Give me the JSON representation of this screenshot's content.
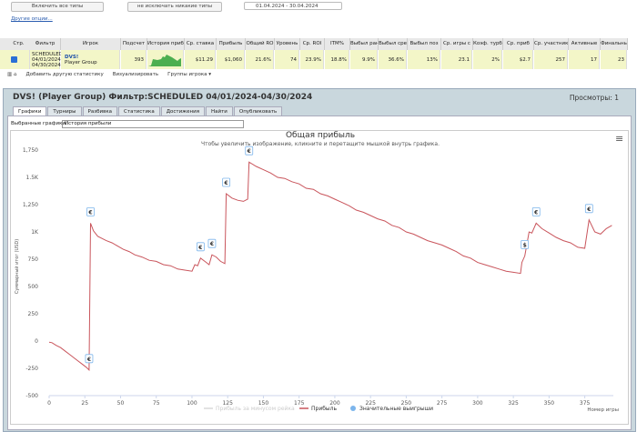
{
  "filters": {
    "include_types": "Включить все типы",
    "exclude_types": "не исключать никакие типы",
    "date_range": "01.04.2024 - 30.04.2024",
    "more_options": "Другие опции..."
  },
  "table": {
    "page_col": "Стр.",
    "headers": [
      "Фильтр",
      "Игрок",
      "Подсчет",
      "История приб",
      "Ср. ставка",
      "Прибыль",
      "Общий RO",
      "Уровень",
      "Ср. ROI",
      "ITM%",
      "Выбыл ран",
      "Выбыл сре",
      "Выбыл поз",
      "Ср. игры с",
      "Коэф. турбо",
      "Ср. приб",
      "Ср. участник",
      "Активные",
      "Финальны"
    ],
    "row": {
      "filter": "SCHEDULED 04/01/2024-04/30/2024",
      "player": "DVS!",
      "player_type": "Player Group",
      "values": [
        "393",
        null,
        "$11.29",
        "$1,060",
        "21.6%",
        "74",
        "23.9%",
        "18.8%",
        "9.9%",
        "36.6%",
        "13%",
        "23.1",
        "2%",
        "$2.7",
        "257",
        "17",
        "23"
      ]
    }
  },
  "toolbar": {
    "add_stat": "Добавить другую статистику",
    "visualize": "Визуализировать",
    "player_groups": "Группы игрока ▾"
  },
  "window": {
    "title": "DVS! (Player Group) Фильтр:SCHEDULED 04/01/2024-04/30/2024",
    "views": "Просмотры: 1",
    "tabs": [
      "Графики",
      "Турниры",
      "Разбивка",
      "Статистика",
      "Достижения",
      "Найти",
      "Опубликовать"
    ],
    "selected_charts_label": "Выбранные графики:",
    "selected_chart": "История прибыли"
  },
  "chart_data": {
    "type": "line",
    "title": "Общая прибыль",
    "subtitle": "Чтобы увеличить изображение, кликните и перетащите мышкой внутрь графика.",
    "y_label": "Суммарный итог (USD)",
    "x_label": "Номер игры",
    "xlim": [
      0,
      395
    ],
    "xticks": [
      0,
      25,
      50,
      75,
      100,
      125,
      150,
      175,
      200,
      225,
      250,
      275,
      300,
      325,
      350,
      375
    ],
    "ylim": [
      -500,
      1875
    ],
    "yticks": [
      -500,
      -250,
      0,
      250,
      500,
      750,
      {
        "value": 1000,
        "label": "1K"
      },
      {
        "value": 1250,
        "label": "1,250"
      },
      {
        "value": 1500,
        "label": "1.5K"
      },
      {
        "value": 1750,
        "label": "1,750"
      }
    ],
    "grid": false,
    "x": [
      0,
      2,
      5,
      8,
      11,
      14,
      17,
      20,
      23,
      26,
      28,
      29,
      31,
      34,
      37,
      40,
      44,
      48,
      52,
      56,
      60,
      65,
      70,
      75,
      80,
      85,
      90,
      95,
      100,
      102,
      104,
      106,
      109,
      112,
      114,
      117,
      120,
      123,
      124,
      128,
      132,
      136,
      139,
      140,
      145,
      150,
      155,
      160,
      165,
      170,
      175,
      180,
      185,
      190,
      195,
      200,
      205,
      210,
      215,
      220,
      225,
      230,
      235,
      240,
      245,
      250,
      255,
      260,
      265,
      270,
      275,
      280,
      285,
      290,
      295,
      300,
      305,
      310,
      315,
      320,
      325,
      330,
      331,
      333,
      336,
      338,
      341,
      345,
      350,
      355,
      360,
      365,
      370,
      375,
      378,
      382,
      386,
      390,
      394
    ],
    "series": [
      {
        "name": "Прибыль за минусом рейка",
        "color": "#d8d8d8",
        "values": null
      },
      {
        "name": "Прибыль",
        "color": "#c9555c",
        "values": [
          -10,
          -15,
          -40,
          -60,
          -90,
          -120,
          -150,
          -180,
          -210,
          -240,
          -265,
          1080,
          1010,
          960,
          940,
          920,
          900,
          870,
          840,
          820,
          790,
          770,
          740,
          730,
          700,
          690,
          660,
          650,
          640,
          700,
          690,
          760,
          730,
          700,
          790,
          770,
          730,
          710,
          1350,
          1310,
          1290,
          1280,
          1300,
          1640,
          1600,
          1570,
          1540,
          1500,
          1490,
          1460,
          1440,
          1400,
          1390,
          1350,
          1330,
          1300,
          1270,
          1240,
          1200,
          1180,
          1150,
          1120,
          1100,
          1060,
          1040,
          1000,
          980,
          950,
          920,
          900,
          880,
          850,
          820,
          780,
          760,
          720,
          700,
          680,
          660,
          640,
          630,
          620,
          720,
          780,
          1000,
          990,
          1080,
          1030,
          990,
          950,
          920,
          900,
          860,
          850,
          1110,
          1000,
          980,
          1030,
          1060
        ]
      },
      {
        "name": "Значительные выигрыши",
        "color": "#7cb5ec",
        "values": null
      }
    ],
    "big_wins": [
      {
        "x": 28,
        "label": "€"
      },
      {
        "x": 29,
        "label": "€"
      },
      {
        "x": 106,
        "label": "€"
      },
      {
        "x": 114,
        "label": "€"
      },
      {
        "x": 124,
        "label": "€"
      },
      {
        "x": 140,
        "label": "€"
      },
      {
        "x": 333,
        "label": "$"
      },
      {
        "x": 341,
        "label": "€"
      },
      {
        "x": 378,
        "label": "€"
      }
    ]
  }
}
